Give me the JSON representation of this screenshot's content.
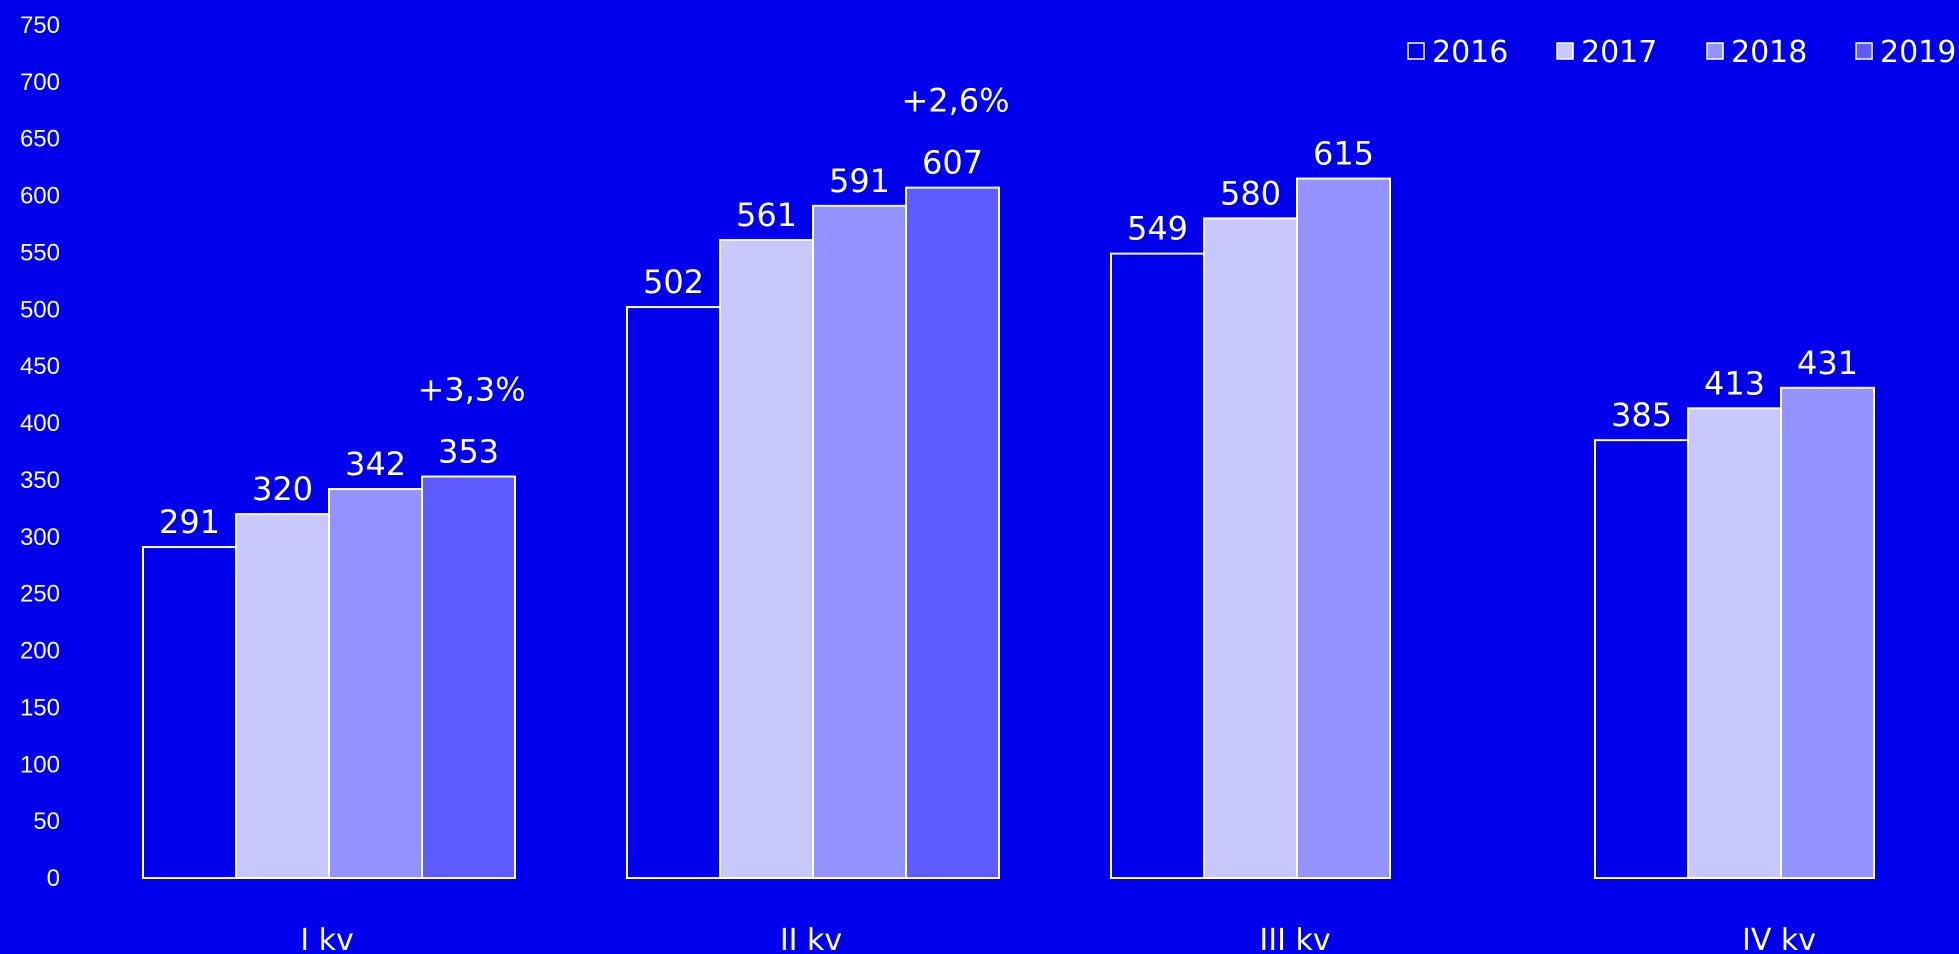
{
  "chart_data": {
    "type": "bar",
    "title": "",
    "xlabel": "",
    "ylabel": "",
    "ylim": [
      0,
      750
    ],
    "yticks": [
      0,
      50,
      100,
      150,
      200,
      250,
      300,
      350,
      400,
      450,
      500,
      550,
      600,
      650,
      700,
      750
    ],
    "categories": [
      "I kv",
      "II kv",
      "III kv",
      "IV kv"
    ],
    "series": [
      {
        "name": "2016",
        "color": "#0000EE",
        "values": [
          291,
          502,
          549,
          385
        ]
      },
      {
        "name": "2017",
        "color": "#C8C8FF",
        "values": [
          320,
          561,
          580,
          413
        ]
      },
      {
        "name": "2018",
        "color": "#9393FF",
        "values": [
          342,
          591,
          615,
          431
        ]
      },
      {
        "name": "2019",
        "color": "#5C5CFF",
        "values": [
          353,
          607,
          null,
          null
        ]
      }
    ],
    "annotations": [
      {
        "category": "I kv",
        "text": "+3,3%"
      },
      {
        "category": "II kv",
        "text": "+2,6%"
      }
    ],
    "legend": "top-right",
    "grid": false,
    "background": "#0000EE",
    "bar_outline": "#FFFFFF"
  }
}
